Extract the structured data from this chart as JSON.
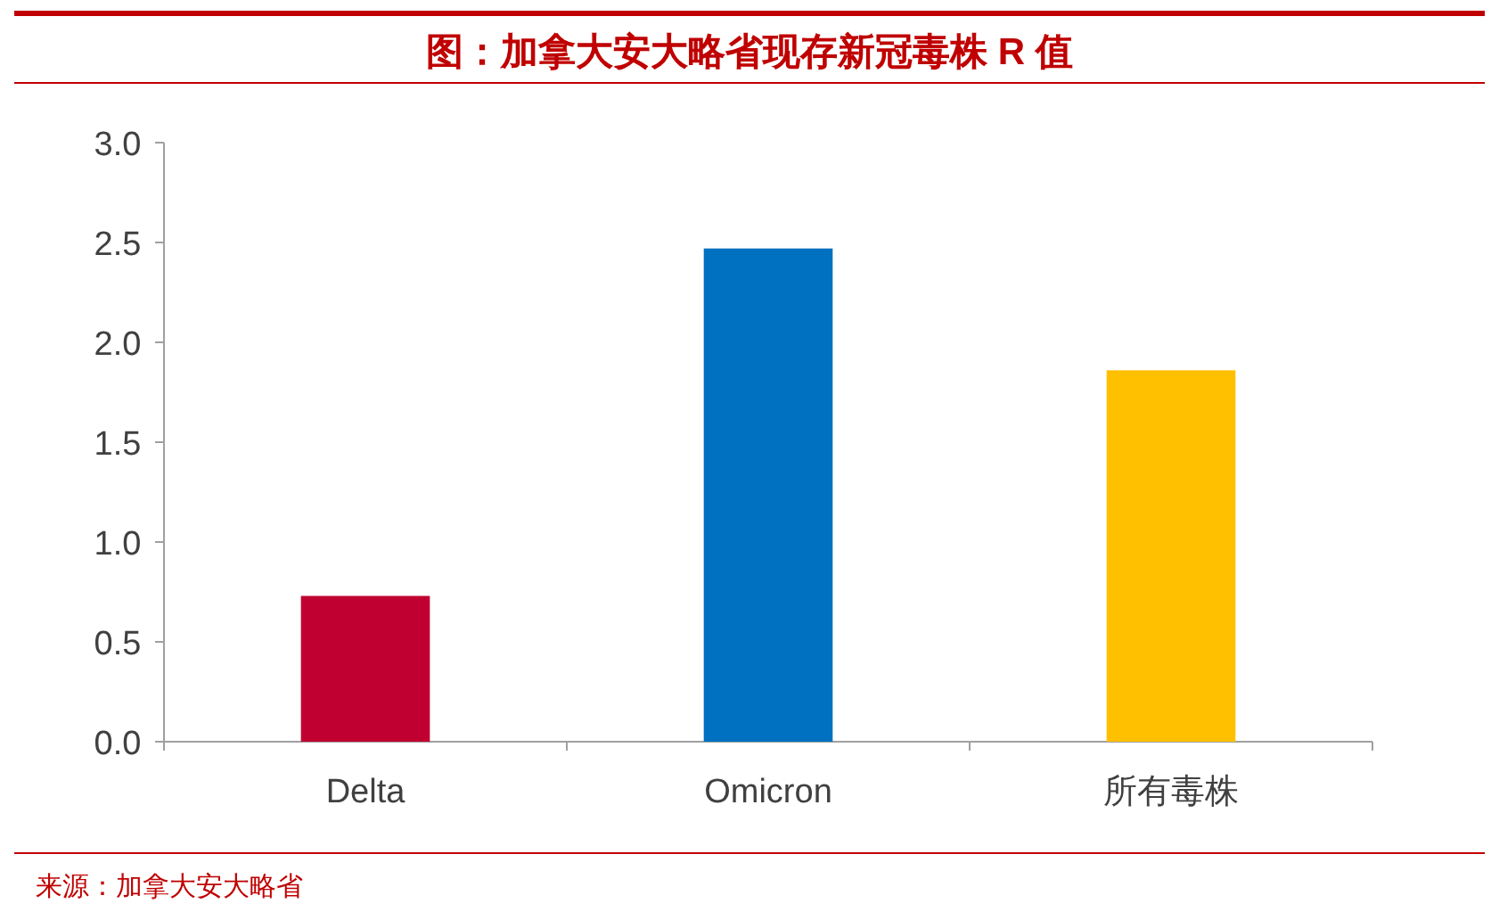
{
  "chart_data": {
    "type": "bar",
    "title": "图：加拿大安大略省现存新冠毒株 R 值",
    "categories": [
      "Delta",
      "Omicron",
      "所有毒株"
    ],
    "values": [
      0.73,
      2.47,
      1.86
    ],
    "colors": [
      "#c00030",
      "#0070c0",
      "#ffc000"
    ],
    "ylim": [
      0,
      3
    ],
    "yticks": [
      {
        "value": 0,
        "label": "0.0"
      },
      {
        "value": 0.5,
        "label": "0.5"
      },
      {
        "value": 1,
        "label": "1.0"
      },
      {
        "value": 1.5,
        "label": "1.5"
      },
      {
        "value": 2,
        "label": "2.0"
      },
      {
        "value": 2.5,
        "label": "2.5"
      },
      {
        "value": 3,
        "label": "3.0"
      }
    ],
    "annotations": [
      "来源：加拿大安大略省"
    ]
  }
}
